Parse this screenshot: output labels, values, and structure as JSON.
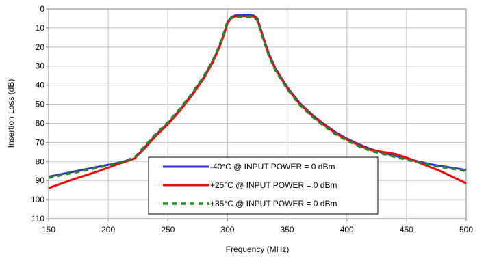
{
  "chart_data": {
    "type": "line",
    "title": "",
    "xlabel": "Frequency (MHz)",
    "ylabel": "Insertion Loss (dB)",
    "xlim": [
      150,
      500
    ],
    "ylim": [
      0,
      110
    ],
    "y_inverted": true,
    "grid": true,
    "legend_position": "bottom-center",
    "xticks": [
      150,
      200,
      250,
      300,
      350,
      400,
      450,
      500
    ],
    "yticks": [
      0,
      10,
      20,
      30,
      40,
      50,
      60,
      70,
      80,
      90,
      100,
      110
    ],
    "series": [
      {
        "name": "-40°C @ INPUT POWER = 0 dBm",
        "color": "#3333cc",
        "style": "solid",
        "points": [
          [
            150,
            88
          ],
          [
            170,
            85.5
          ],
          [
            190,
            83
          ],
          [
            210,
            80.5
          ],
          [
            222,
            78.5
          ],
          [
            230,
            73
          ],
          [
            240,
            66
          ],
          [
            250,
            60
          ],
          [
            260,
            53
          ],
          [
            270,
            45
          ],
          [
            280,
            36
          ],
          [
            288,
            27
          ],
          [
            293,
            20
          ],
          [
            297,
            13
          ],
          [
            300,
            7
          ],
          [
            303,
            4.5
          ],
          [
            306,
            3.5
          ],
          [
            312,
            3.3
          ],
          [
            318,
            3.3
          ],
          [
            322,
            3.5
          ],
          [
            325,
            5
          ],
          [
            327,
            9
          ],
          [
            330,
            15
          ],
          [
            335,
            24
          ],
          [
            340,
            31
          ],
          [
            350,
            41
          ],
          [
            360,
            49
          ],
          [
            370,
            55
          ],
          [
            380,
            60
          ],
          [
            390,
            64.5
          ],
          [
            400,
            68
          ],
          [
            410,
            71
          ],
          [
            420,
            73.5
          ],
          [
            430,
            75.5
          ],
          [
            440,
            77
          ],
          [
            450,
            78.5
          ],
          [
            460,
            80
          ],
          [
            470,
            81.5
          ],
          [
            480,
            82.5
          ],
          [
            490,
            83.5
          ],
          [
            500,
            84.5
          ]
        ]
      },
      {
        "name": "+25°C @ INPUT POWER = 0 dBm",
        "color": "#ff0000",
        "style": "solid",
        "points": [
          [
            150,
            94
          ],
          [
            170,
            89.5
          ],
          [
            190,
            85.5
          ],
          [
            210,
            81
          ],
          [
            222,
            78.5
          ],
          [
            230,
            73.5
          ],
          [
            240,
            66.5
          ],
          [
            250,
            60.5
          ],
          [
            260,
            53.5
          ],
          [
            270,
            45.5
          ],
          [
            280,
            36.5
          ],
          [
            288,
            27.5
          ],
          [
            293,
            20.5
          ],
          [
            297,
            13.5
          ],
          [
            300,
            7.5
          ],
          [
            303,
            5
          ],
          [
            306,
            4
          ],
          [
            312,
            3.8
          ],
          [
            318,
            3.8
          ],
          [
            322,
            4
          ],
          [
            325,
            5.5
          ],
          [
            327,
            9.5
          ],
          [
            330,
            15.5
          ],
          [
            335,
            24.5
          ],
          [
            340,
            31.5
          ],
          [
            350,
            41.5
          ],
          [
            360,
            49.5
          ],
          [
            370,
            55.5
          ],
          [
            380,
            60.5
          ],
          [
            390,
            65
          ],
          [
            400,
            68.5
          ],
          [
            410,
            71.5
          ],
          [
            420,
            74
          ],
          [
            430,
            75
          ],
          [
            440,
            76
          ],
          [
            450,
            78
          ],
          [
            460,
            80.5
          ],
          [
            470,
            83
          ],
          [
            480,
            85.5
          ],
          [
            490,
            88.5
          ],
          [
            500,
            91.5
          ]
        ]
      },
      {
        "name": "+85°C @ INPUT POWER = 0 dBm",
        "color": "#228822",
        "style": "dashed",
        "points": [
          [
            150,
            88.5
          ],
          [
            170,
            86
          ],
          [
            190,
            83.5
          ],
          [
            210,
            80.5
          ],
          [
            222,
            78
          ],
          [
            230,
            72.5
          ],
          [
            240,
            65.5
          ],
          [
            250,
            59.5
          ],
          [
            260,
            52.5
          ],
          [
            270,
            44.5
          ],
          [
            280,
            35.5
          ],
          [
            288,
            26.5
          ],
          [
            293,
            19.5
          ],
          [
            297,
            12.5
          ],
          [
            300,
            6.5
          ],
          [
            303,
            4.8
          ],
          [
            306,
            4.3
          ],
          [
            312,
            4
          ],
          [
            318,
            4
          ],
          [
            322,
            4.5
          ],
          [
            325,
            6
          ],
          [
            327,
            10
          ],
          [
            330,
            16
          ],
          [
            335,
            25
          ],
          [
            340,
            32
          ],
          [
            350,
            42
          ],
          [
            360,
            50
          ],
          [
            370,
            56
          ],
          [
            380,
            61
          ],
          [
            390,
            65.5
          ],
          [
            400,
            69
          ],
          [
            410,
            72
          ],
          [
            420,
            74.5
          ],
          [
            430,
            76
          ],
          [
            440,
            77.5
          ],
          [
            450,
            79
          ],
          [
            460,
            80.5
          ],
          [
            470,
            82
          ],
          [
            480,
            83
          ],
          [
            490,
            84
          ],
          [
            500,
            85
          ]
        ]
      }
    ]
  }
}
